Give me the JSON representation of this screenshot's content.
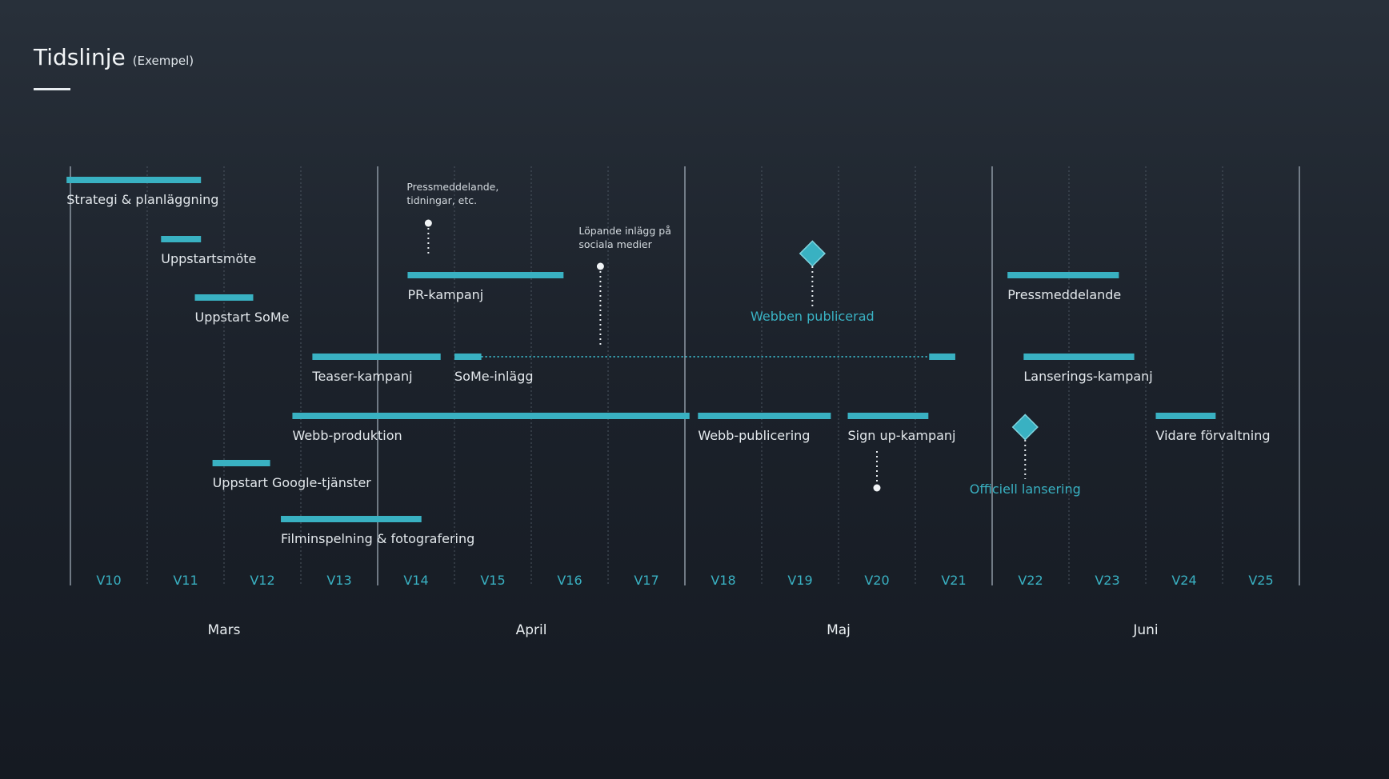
{
  "title": {
    "main": "Tidslinje",
    "sub": "(Exempel)"
  },
  "colors": {
    "accent": "#39b1c2",
    "text": "#e3e8ec",
    "note": "#d3d9de",
    "background": "#1c222b"
  },
  "weeks": [
    "V10",
    "V11",
    "V12",
    "V13",
    "V14",
    "V15",
    "V16",
    "V17",
    "V18",
    "V19",
    "V20",
    "V21",
    "V22",
    "V23",
    "V24",
    "V25"
  ],
  "months": [
    {
      "label": "Mars",
      "start_week": 10,
      "end_week": 13
    },
    {
      "label": "April",
      "start_week": 14,
      "end_week": 17
    },
    {
      "label": "Maj",
      "start_week": 18,
      "end_week": 21
    },
    {
      "label": "Juni",
      "start_week": 22,
      "end_week": 25
    }
  ],
  "tasks": [
    {
      "label": "Strategi & planläggning",
      "start": 9.95,
      "end": 11.7,
      "row": 0
    },
    {
      "label": "Uppstartsmöte",
      "start": 11.18,
      "end": 11.7,
      "row": 1
    },
    {
      "label": "Uppstart SoMe",
      "start": 11.62,
      "end": 12.38,
      "row": 2
    },
    {
      "label": "PR-kampanj",
      "start": 14.39,
      "end": 16.42,
      "row": 3
    },
    {
      "label": "Pressmeddelande",
      "start": 22.2,
      "end": 23.65,
      "row": 3
    },
    {
      "label": "Teaser-kampanj",
      "start": 13.15,
      "end": 14.82,
      "row": 4
    },
    {
      "label": "SoMe-inlägg",
      "start": 15.0,
      "end": 15.35,
      "end_segment": [
        21.18,
        21.52
      ],
      "row": 4
    },
    {
      "label": "Lanserings-kampanj",
      "start": 22.41,
      "end": 23.85,
      "row": 4
    },
    {
      "label": "Webb-produktion",
      "start": 12.89,
      "end": 18.06,
      "row": 5
    },
    {
      "label": "Webb-publicering",
      "start": 18.17,
      "end": 19.9,
      "row": 5
    },
    {
      "label": "Sign up-kampanj",
      "start": 20.12,
      "end": 21.17,
      "row": 5
    },
    {
      "label": "Vidare förvaltning",
      "start": 24.13,
      "end": 24.91,
      "row": 5
    },
    {
      "label": "Uppstart Google-tjänster",
      "start": 11.85,
      "end": 12.6,
      "row": 6
    },
    {
      "label": "Filminspelning & fotografering",
      "start": 12.74,
      "end": 14.57,
      "row": 7
    }
  ],
  "milestones": [
    {
      "label": "Webben publicerad",
      "week": 19.66
    },
    {
      "label": "Officiell lansering",
      "week": 22.43
    }
  ],
  "notes": [
    {
      "lines": [
        "Pressmeddelande,",
        "tidningar, etc."
      ],
      "week": 14.66
    },
    {
      "lines": [
        "Löpande inlägg på",
        "sociala medier"
      ],
      "week": 16.9
    }
  ]
}
